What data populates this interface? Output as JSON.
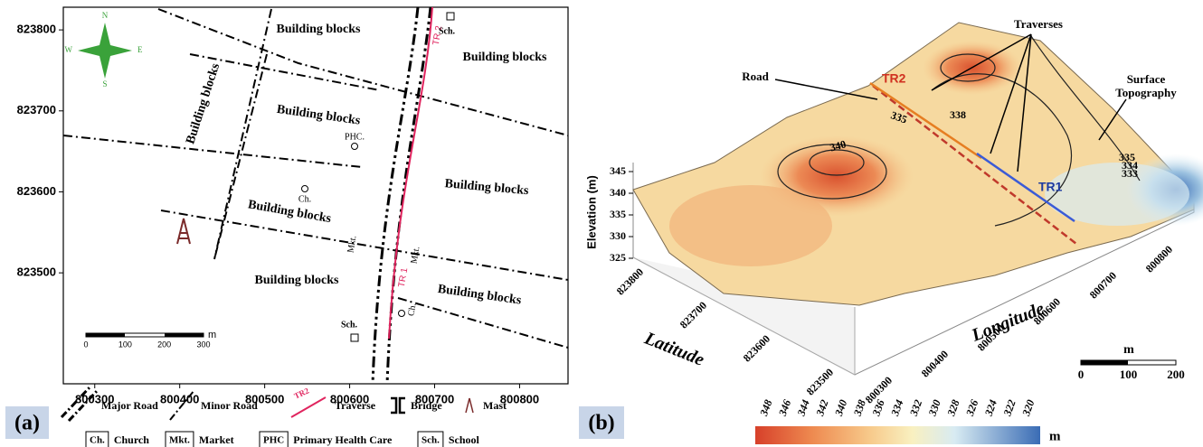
{
  "panel_a": {
    "label": "(a)",
    "x_axis": {
      "ticks": [
        800300,
        800400,
        800500,
        800600,
        800700,
        800800
      ],
      "lim": [
        800263,
        800857
      ]
    },
    "y_axis": {
      "ticks": [
        823500,
        823600,
        823700,
        823800
      ],
      "lim": [
        823363,
        823828
      ]
    },
    "compass": {
      "n": "N",
      "e": "E",
      "s": "S",
      "w": "W"
    },
    "building_blocks": [
      "Building blocks",
      "Building blocks",
      "Building blocks",
      "Building blocks",
      "Building blocks",
      "Building blocks",
      "Building blocks",
      "Building blocks"
    ],
    "places": [
      "Sch.",
      "PHC.",
      "Ch.",
      "Mkt.",
      "Mkt.",
      "Ch.",
      "Sch."
    ],
    "traverses": [
      "TR 2",
      "TR 1"
    ],
    "scale_bar": {
      "ticks": [
        0,
        100,
        200,
        300
      ],
      "unit": "m"
    },
    "legend": {
      "major_road": "Major Road",
      "minor_road": "Minor Road",
      "traverse_symbol": "TR2",
      "traverse": "Traverse",
      "bridge": "Bridge",
      "mast": "Mast"
    },
    "abbreviations": [
      {
        "abbr": "Ch.",
        "meaning": "Church"
      },
      {
        "abbr": "Mkt.",
        "meaning": "Market"
      },
      {
        "abbr": "PHC",
        "meaning": "Primary Health Care"
      },
      {
        "abbr": "Sch.",
        "meaning": "School"
      }
    ]
  },
  "panel_b": {
    "label": "(b)",
    "annotations": {
      "traverses": "Traverses",
      "road": "Road",
      "surface": "Surface Topography"
    },
    "traverses": [
      "TR2",
      "TR1"
    ],
    "contour_labels": [
      338,
      335,
      340,
      335,
      334,
      333
    ],
    "elevation_axis": {
      "title": "Elevation (m)",
      "ticks": [
        345,
        340,
        335,
        330,
        325
      ]
    },
    "latitude_axis": {
      "title": "Latitude",
      "ticks": [
        823800,
        823700,
        823600,
        823500
      ]
    },
    "longitude_axis": {
      "title": "Longitude",
      "ticks": [
        800300,
        800400,
        800500,
        800600,
        800700,
        800800
      ]
    },
    "scale_bar": {
      "unit": "m",
      "ticks": [
        0,
        100,
        200
      ]
    },
    "colorbar": {
      "ticks": [
        348,
        346,
        344,
        342,
        340,
        338,
        336,
        334,
        332,
        330,
        328,
        326,
        324,
        322,
        320
      ],
      "unit": "m"
    }
  }
}
